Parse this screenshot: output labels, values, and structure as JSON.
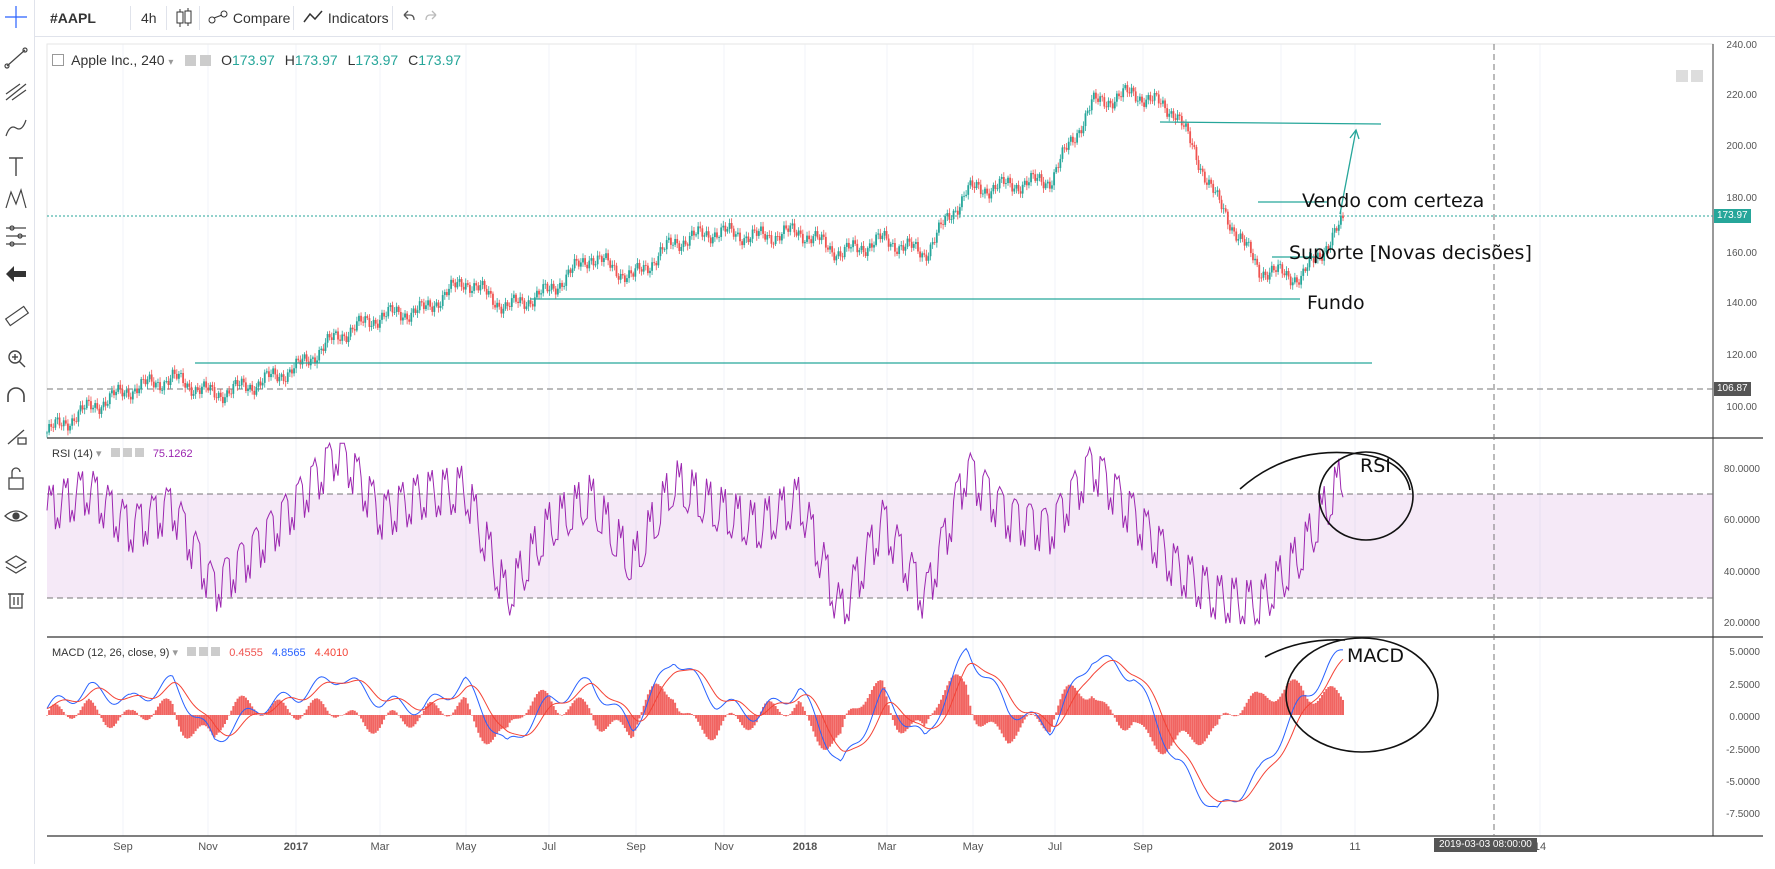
{
  "toolbar": {
    "symbol": "#AAPL",
    "interval": "4h",
    "compare_label": "Compare",
    "indicators_label": "Indicators"
  },
  "left_tools": [
    "crosshair-icon",
    "trend-line-icon",
    "pitchfork-icon",
    "brush-icon",
    "text-icon",
    "pattern-icon",
    "prediction-icon",
    "back-arrow-icon",
    "ruler-icon",
    "zoom-in-icon",
    "magnet-icon",
    "lock-drawing-icon",
    "unlock-icon",
    "eye-icon",
    "layers-icon",
    "trash-icon"
  ],
  "main_legend": {
    "title": "Apple Inc., 240",
    "o_label": "O",
    "o": "173.97",
    "h_label": "H",
    "h": "173.97",
    "l_label": "L",
    "l": "173.97",
    "c_label": "C",
    "c": "173.97"
  },
  "rsi_legend": {
    "title": "RSI (14)",
    "value": "75.1262"
  },
  "macd_legend": {
    "title": "MACD (12, 26, close, 9)",
    "hist": "0.4555",
    "macd": "4.8565",
    "signal": "4.4010"
  },
  "price_axis": {
    "labels": [
      "240.00",
      "220.00",
      "200.00",
      "180.00",
      "160.00",
      "140.00",
      "120.00",
      "100.00"
    ],
    "last_price": "173.97",
    "hline_price": "106.87"
  },
  "rsi_axis": {
    "labels": [
      "80.0000",
      "60.0000",
      "40.0000",
      "20.0000"
    ]
  },
  "macd_axis": {
    "labels": [
      "5.0000",
      "2.5000",
      "0.0000",
      "-2.5000",
      "-5.0000",
      "-7.5000"
    ]
  },
  "time_axis": {
    "labels": [
      "Sep",
      "Nov",
      "2017",
      "Mar",
      "May",
      "Jul",
      "Sep",
      "Nov",
      "2018",
      "Mar",
      "May",
      "Jul",
      "Sep",
      "2019",
      "11",
      "14"
    ],
    "cursor_date": "2019-03-03 08:00:00"
  },
  "annotations": {
    "vendo": "Vendo com certeza",
    "suporte": "Suporte [Novas decisões]",
    "fundo": "Fundo",
    "rsi": "RSI",
    "macd": "MACD"
  },
  "colors": {
    "up": "#26a69a",
    "down": "#ef5350",
    "rsi_line": "#9c27b0",
    "macd_line": "#2962ff",
    "signal_line": "#f44336",
    "drawing": "#26a69a"
  },
  "chart_data": {
    "type": "candlestick",
    "title": "Apple Inc., 240",
    "x": [
      "2016-07",
      "2016-08",
      "2016-09",
      "2016-10",
      "2016-11",
      "2016-12",
      "2017-01",
      "2017-02",
      "2017-03",
      "2017-04",
      "2017-05",
      "2017-06",
      "2017-07",
      "2017-08",
      "2017-09",
      "2017-10",
      "2017-11",
      "2017-12",
      "2018-01",
      "2018-02",
      "2018-03",
      "2018-04",
      "2018-05",
      "2018-06",
      "2018-07",
      "2018-08",
      "2018-09",
      "2018-10",
      "2018-11",
      "2018-12",
      "2019-01",
      "2019-02"
    ],
    "series": [
      {
        "name": "close",
        "values": [
          97,
          106,
          113,
          117,
          111,
          115,
          121,
          133,
          140,
          142,
          153,
          143,
          149,
          162,
          154,
          167,
          171,
          169,
          171,
          163,
          168,
          163,
          186,
          188,
          190,
          218,
          222,
          215,
          182,
          157,
          154,
          174
        ]
      },
      {
        "name": "RSI (14)",
        "values": [
          62,
          70,
          55,
          64,
          32,
          48,
          66,
          86,
          60,
          68,
          70,
          28,
          55,
          66,
          40,
          72,
          62,
          55,
          66,
          22,
          58,
          28,
          78,
          60,
          55,
          80,
          60,
          40,
          28,
          25,
          45,
          75
        ]
      },
      {
        "name": "MACD (12, 26, close, 9)",
        "values": [
          0.5,
          2.0,
          1.0,
          2.5,
          -2.0,
          0.5,
          1.5,
          3.0,
          1.0,
          0.5,
          2.5,
          -2.5,
          1.0,
          2.5,
          -1.0,
          4.5,
          1.0,
          0.0,
          2.0,
          -4.0,
          1.5,
          -2.0,
          5.0,
          0.5,
          -1.0,
          4.5,
          3.0,
          -3.5,
          -7.5,
          -4.5,
          1.0,
          4.9
        ]
      }
    ],
    "ylim": [
      95,
      240
    ],
    "rsi_levels": [
      30,
      70
    ],
    "horizontal_levels": [
      209,
      179,
      142,
      118
    ],
    "last_price": 173.97
  }
}
